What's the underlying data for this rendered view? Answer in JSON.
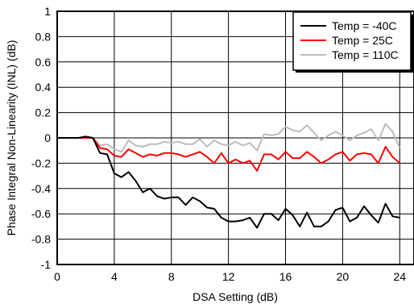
{
  "chart_data": {
    "type": "line",
    "title": "",
    "xlabel": "DSA Setting (dB)",
    "ylabel": "Phase Integral Non-Linearity (INL) (dB)",
    "xlim": [
      0,
      25
    ],
    "ylim": [
      -1,
      1
    ],
    "xticks": [
      0,
      4,
      8,
      12,
      16,
      20,
      24
    ],
    "yticks": [
      -1,
      -0.8,
      -0.6,
      -0.4,
      -0.2,
      0,
      0.2,
      0.4,
      0.6,
      0.8,
      1
    ],
    "grid": true,
    "legend_position": "top-right",
    "series": [
      {
        "name": "Temp = -40C",
        "color": "#000000",
        "x": [
          0,
          0.5,
          1,
          1.5,
          2,
          2.5,
          3,
          3.5,
          4,
          4.5,
          5,
          5.5,
          6,
          6.5,
          7,
          7.5,
          8,
          8.5,
          9,
          9.5,
          10,
          10.5,
          11,
          11.5,
          12,
          12.5,
          13,
          13.5,
          14,
          14.5,
          15,
          15.5,
          16,
          16.5,
          17,
          17.5,
          18,
          18.5,
          19,
          19.5,
          20,
          20.5,
          21,
          21.5,
          22,
          22.5,
          23,
          23.5,
          24
        ],
        "values": [
          0,
          0,
          0,
          0,
          0.01,
          0,
          -0.12,
          -0.13,
          -0.28,
          -0.31,
          -0.27,
          -0.34,
          -0.43,
          -0.4,
          -0.46,
          -0.48,
          -0.47,
          -0.47,
          -0.53,
          -0.47,
          -0.5,
          -0.55,
          -0.56,
          -0.63,
          -0.66,
          -0.66,
          -0.65,
          -0.63,
          -0.71,
          -0.6,
          -0.6,
          -0.65,
          -0.56,
          -0.61,
          -0.7,
          -0.59,
          -0.7,
          -0.7,
          -0.66,
          -0.57,
          -0.55,
          -0.66,
          -0.63,
          -0.54,
          -0.61,
          -0.67,
          -0.52,
          -0.62,
          -0.63
        ]
      },
      {
        "name": "Temp = 25C",
        "color": "#ff0000",
        "x": [
          0,
          0.5,
          1,
          1.5,
          2,
          2.5,
          3,
          3.5,
          4,
          4.5,
          5,
          5.5,
          6,
          6.5,
          7,
          7.5,
          8,
          8.5,
          9,
          9.5,
          10,
          10.5,
          11,
          11.5,
          12,
          12.5,
          13,
          13.5,
          14,
          14.5,
          15,
          15.5,
          16,
          16.5,
          17,
          17.5,
          18,
          18.5,
          19,
          19.5,
          20,
          20.5,
          21,
          21.5,
          22,
          22.5,
          23,
          23.5,
          24
        ],
        "values": [
          0,
          0,
          0,
          0,
          0,
          0,
          -0.08,
          -0.09,
          -0.14,
          -0.15,
          -0.09,
          -0.12,
          -0.15,
          -0.13,
          -0.14,
          -0.12,
          -0.12,
          -0.13,
          -0.15,
          -0.13,
          -0.11,
          -0.15,
          -0.2,
          -0.12,
          -0.2,
          -0.17,
          -0.2,
          -0.18,
          -0.26,
          -0.13,
          -0.13,
          -0.17,
          -0.11,
          -0.16,
          -0.16,
          -0.11,
          -0.15,
          -0.2,
          -0.17,
          -0.13,
          -0.11,
          -0.18,
          -0.13,
          -0.12,
          -0.13,
          -0.2,
          -0.07,
          -0.15,
          -0.2
        ]
      },
      {
        "name": "Temp = 110C",
        "color": "#bcbcbc",
        "x": [
          0,
          0.5,
          1,
          1.5,
          2,
          2.5,
          3,
          3.5,
          4,
          4.5,
          5,
          5.5,
          6,
          6.5,
          7,
          7.5,
          8,
          8.5,
          9,
          9.5,
          10,
          10.5,
          11,
          11.5,
          12,
          12.5,
          13,
          13.5,
          14,
          14.5,
          15,
          15.5,
          16,
          16.5,
          17,
          17.5,
          18,
          18.5,
          19,
          19.5,
          20,
          20.5,
          21,
          21.5,
          22,
          22.5,
          23,
          23.5,
          24
        ],
        "values": [
          0,
          0,
          0,
          0,
          0.01,
          0,
          -0.06,
          -0.05,
          -0.09,
          -0.11,
          -0.02,
          -0.06,
          -0.07,
          -0.05,
          -0.05,
          -0.03,
          -0.04,
          -0.03,
          -0.05,
          -0.05,
          -0.01,
          -0.07,
          -0.02,
          -0.05,
          -0.06,
          -0.03,
          -0.06,
          -0.04,
          -0.1,
          0.03,
          0.02,
          0.03,
          0.09,
          0.06,
          0.05,
          0.1,
          0.04,
          -0.02,
          0.02,
          0.05,
          0.02,
          -0.02,
          0.02,
          0.04,
          0.07,
          -0.02,
          0.11,
          0.05,
          -0.08
        ]
      }
    ]
  }
}
